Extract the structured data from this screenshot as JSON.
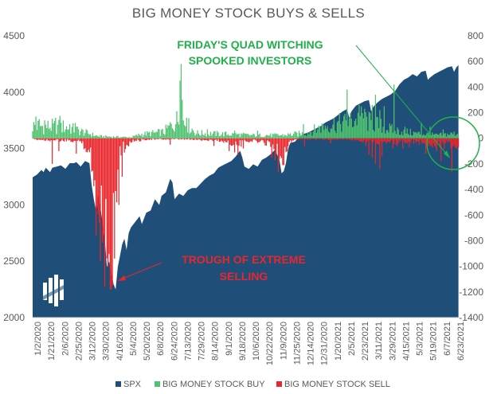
{
  "chart_data": {
    "type": "area",
    "title": "BIG MONEY STOCK BUYS & SELLS",
    "x_tick_labels": [
      "1/2/2020",
      "1/21/2020",
      "2/6/2020",
      "2/25/2020",
      "3/12/2020",
      "3/30/2020",
      "4/16/2020",
      "5/4/2020",
      "5/20/2020",
      "6/8/2020",
      "6/24/2020",
      "7/13/2020",
      "7/29/2020",
      "8/14/2020",
      "9/1/2020",
      "9/18/2020",
      "10/6/2020",
      "10/22/2020",
      "11/9/2020",
      "11/25/2020",
      "12/14/2020",
      "12/31/2020",
      "1/20/2021",
      "2/5/2021",
      "2/23/2021",
      "3/11/2021",
      "3/29/2021",
      "4/15/2021",
      "5/3/2021",
      "5/19/2021",
      "6/7/2021",
      "6/23/2021"
    ],
    "y_left": {
      "ticks": [
        2000,
        2500,
        3000,
        3500,
        4000,
        4500
      ],
      "ylim": [
        2000,
        4500
      ]
    },
    "y_right": {
      "ticks": [
        800,
        600,
        400,
        200,
        0,
        -200,
        -400,
        -600,
        -800,
        -1000,
        -1200,
        -1400
      ],
      "ylim": [
        -1400,
        800
      ]
    },
    "spx": {
      "name": "SPX",
      "color": "#1f4e79",
      "points": [
        [
          0,
          3245
        ],
        [
          4,
          3270
        ],
        [
          8,
          3310
        ],
        [
          10,
          3290
        ],
        [
          12,
          3330
        ],
        [
          16,
          3290
        ],
        [
          18,
          3330
        ],
        [
          22,
          3340
        ],
        [
          26,
          3350
        ],
        [
          30,
          3320
        ],
        [
          34,
          3370
        ],
        [
          38,
          3370
        ],
        [
          40,
          3380
        ],
        [
          44,
          3340
        ],
        [
          48,
          3390
        ],
        [
          52,
          3370
        ],
        [
          54,
          3180
        ],
        [
          56,
          3050
        ],
        [
          58,
          2950
        ],
        [
          60,
          3100
        ],
        [
          62,
          2980
        ],
        [
          64,
          2850
        ],
        [
          66,
          2700
        ],
        [
          68,
          2450
        ],
        [
          70,
          2500
        ],
        [
          72,
          2400
        ],
        [
          74,
          2300
        ],
        [
          76,
          2250
        ],
        [
          78,
          2450
        ],
        [
          80,
          2550
        ],
        [
          82,
          2650
        ],
        [
          84,
          2700
        ],
        [
          86,
          2600
        ],
        [
          88,
          2750
        ],
        [
          90,
          2800
        ],
        [
          94,
          2850
        ],
        [
          98,
          2900
        ],
        [
          100,
          2830
        ],
        [
          104,
          2930
        ],
        [
          108,
          2950
        ],
        [
          112,
          3050
        ],
        [
          116,
          3000
        ],
        [
          118,
          3080
        ],
        [
          122,
          3110
        ],
        [
          126,
          3230
        ],
        [
          128,
          3200
        ],
        [
          130,
          3050
        ],
        [
          134,
          3100
        ],
        [
          138,
          3080
        ],
        [
          142,
          3130
        ],
        [
          146,
          3150
        ],
        [
          150,
          3150
        ],
        [
          154,
          3190
        ],
        [
          158,
          3230
        ],
        [
          162,
          3260
        ],
        [
          166,
          3280
        ],
        [
          170,
          3330
        ],
        [
          174,
          3350
        ],
        [
          178,
          3370
        ],
        [
          182,
          3390
        ],
        [
          186,
          3430
        ],
        [
          190,
          3480
        ],
        [
          192,
          3420
        ],
        [
          194,
          3340
        ],
        [
          196,
          3330
        ],
        [
          198,
          3320
        ],
        [
          202,
          3360
        ],
        [
          206,
          3340
        ],
        [
          210,
          3400
        ],
        [
          214,
          3420
        ],
        [
          218,
          3450
        ],
        [
          222,
          3490
        ],
        [
          226,
          3400
        ],
        [
          228,
          3280
        ],
        [
          230,
          3300
        ],
        [
          232,
          3370
        ],
        [
          234,
          3500
        ],
        [
          236,
          3550
        ],
        [
          240,
          3560
        ],
        [
          244,
          3600
        ],
        [
          248,
          3630
        ],
        [
          252,
          3640
        ],
        [
          256,
          3660
        ],
        [
          260,
          3680
        ],
        [
          264,
          3700
        ],
        [
          268,
          3730
        ],
        [
          272,
          3750
        ],
        [
          276,
          3770
        ],
        [
          280,
          3800
        ],
        [
          284,
          3830
        ],
        [
          288,
          3850
        ],
        [
          290,
          3770
        ],
        [
          292,
          3830
        ],
        [
          296,
          3880
        ],
        [
          300,
          3900
        ],
        [
          304,
          3920
        ],
        [
          308,
          3930
        ],
        [
          310,
          3830
        ],
        [
          312,
          3870
        ],
        [
          316,
          3910
        ],
        [
          320,
          3940
        ],
        [
          324,
          3960
        ],
        [
          328,
          3980
        ],
        [
          332,
          4010
        ],
        [
          336,
          4070
        ],
        [
          340,
          4110
        ],
        [
          344,
          4130
        ],
        [
          348,
          4160
        ],
        [
          352,
          4140
        ],
        [
          356,
          4180
        ],
        [
          360,
          4190
        ],
        [
          362,
          4110
        ],
        [
          364,
          4130
        ],
        [
          368,
          4160
        ],
        [
          372,
          4180
        ],
        [
          376,
          4200
        ],
        [
          380,
          4220
        ],
        [
          384,
          4230
        ],
        [
          386,
          4180
        ],
        [
          388,
          4220
        ],
        [
          390,
          4240
        ]
      ]
    },
    "buy": {
      "name": "BIG MONEY STOCK BUY",
      "color": "#4ec26f",
      "profile": [
        [
          0,
          120
        ],
        [
          30,
          110
        ],
        [
          50,
          50
        ],
        [
          60,
          20
        ],
        [
          90,
          10
        ],
        [
          100,
          40
        ],
        [
          120,
          60
        ],
        [
          135,
          200
        ],
        [
          150,
          50
        ],
        [
          180,
          40
        ],
        [
          200,
          30
        ],
        [
          230,
          30
        ],
        [
          250,
          50
        ],
        [
          270,
          130
        ],
        [
          290,
          160
        ],
        [
          300,
          200
        ],
        [
          310,
          150
        ],
        [
          330,
          80
        ],
        [
          350,
          50
        ],
        [
          370,
          30
        ],
        [
          391,
          50
        ]
      ],
      "spikes": [
        [
          3,
          170
        ],
        [
          6,
          150
        ],
        [
          11,
          140
        ],
        [
          21,
          160
        ],
        [
          25,
          175
        ],
        [
          34,
          110
        ],
        [
          39,
          120
        ],
        [
          135,
          450
        ],
        [
          136,
          580
        ],
        [
          137,
          300
        ],
        [
          141,
          160
        ],
        [
          160,
          70
        ],
        [
          185,
          60
        ],
        [
          206,
          60
        ],
        [
          248,
          110
        ],
        [
          263,
          90
        ],
        [
          288,
          380
        ],
        [
          299,
          260
        ],
        [
          304,
          230
        ],
        [
          311,
          260
        ],
        [
          314,
          340
        ],
        [
          318,
          220
        ],
        [
          322,
          250
        ],
        [
          331,
          420
        ],
        [
          341,
          90
        ],
        [
          356,
          120
        ],
        [
          364,
          90
        ],
        [
          376,
          70
        ]
      ]
    },
    "sell": {
      "name": "BIG MONEY STOCK SELL",
      "color": "#e8262b",
      "profile": [
        [
          0,
          -10
        ],
        [
          20,
          -20
        ],
        [
          45,
          -30
        ],
        [
          52,
          -150
        ],
        [
          56,
          -300
        ],
        [
          60,
          -480
        ],
        [
          64,
          -720
        ],
        [
          68,
          -900
        ],
        [
          72,
          -1050
        ],
        [
          76,
          -420
        ],
        [
          80,
          -120
        ],
        [
          90,
          -30
        ],
        [
          105,
          -10
        ],
        [
          140,
          -10
        ],
        [
          170,
          -20
        ],
        [
          180,
          -40
        ],
        [
          190,
          -60
        ],
        [
          200,
          -20
        ],
        [
          218,
          -50
        ],
        [
          222,
          -90
        ],
        [
          228,
          -180
        ],
        [
          234,
          -60
        ],
        [
          240,
          -10
        ],
        [
          290,
          -10
        ],
        [
          300,
          -20
        ],
        [
          320,
          -40
        ],
        [
          330,
          -40
        ],
        [
          345,
          -30
        ],
        [
          360,
          -50
        ],
        [
          375,
          -60
        ],
        [
          391,
          -80
        ]
      ],
      "spikes": [
        [
          18,
          -200
        ],
        [
          24,
          -100
        ],
        [
          40,
          -120
        ],
        [
          54,
          -260
        ],
        [
          58,
          -760
        ],
        [
          62,
          -960
        ],
        [
          66,
          -1160
        ],
        [
          69,
          -1000
        ],
        [
          71,
          -1180
        ],
        [
          73,
          -1150
        ],
        [
          75,
          -940
        ],
        [
          77,
          -500
        ],
        [
          79,
          -520
        ],
        [
          82,
          -300
        ],
        [
          126,
          -50
        ],
        [
          166,
          -60
        ],
        [
          180,
          -100
        ],
        [
          185,
          -110
        ],
        [
          188,
          -130
        ],
        [
          193,
          -80
        ],
        [
          219,
          -150
        ],
        [
          222,
          -170
        ],
        [
          225,
          -260
        ],
        [
          230,
          -210
        ],
        [
          249,
          -60
        ],
        [
          273,
          -40
        ],
        [
          305,
          -60
        ],
        [
          308,
          -130
        ],
        [
          311,
          -150
        ],
        [
          314,
          -200
        ],
        [
          318,
          -240
        ],
        [
          320,
          -140
        ],
        [
          330,
          -80
        ],
        [
          334,
          -60
        ],
        [
          339,
          -80
        ],
        [
          345,
          -70
        ],
        [
          360,
          -120
        ],
        [
          370,
          -100
        ],
        [
          374,
          -180
        ],
        [
          384,
          -260
        ]
      ]
    },
    "annotations": [
      {
        "lines": [
          "FRIDAY'S QUAD WITCHING",
          "SPOOKED INVESTORS"
        ],
        "color": "#22b04b"
      },
      {
        "lines": [
          "TROUGH OF EXTREME",
          "SELLING"
        ],
        "color": "#e8262b"
      }
    ],
    "legend": {
      "placement": "bottom",
      "items": [
        "SPX",
        "BIG MONEY STOCK BUY",
        "BIG MONEY STOCK SELL"
      ]
    }
  },
  "logo": {
    "name": "mapsignals-logo"
  }
}
